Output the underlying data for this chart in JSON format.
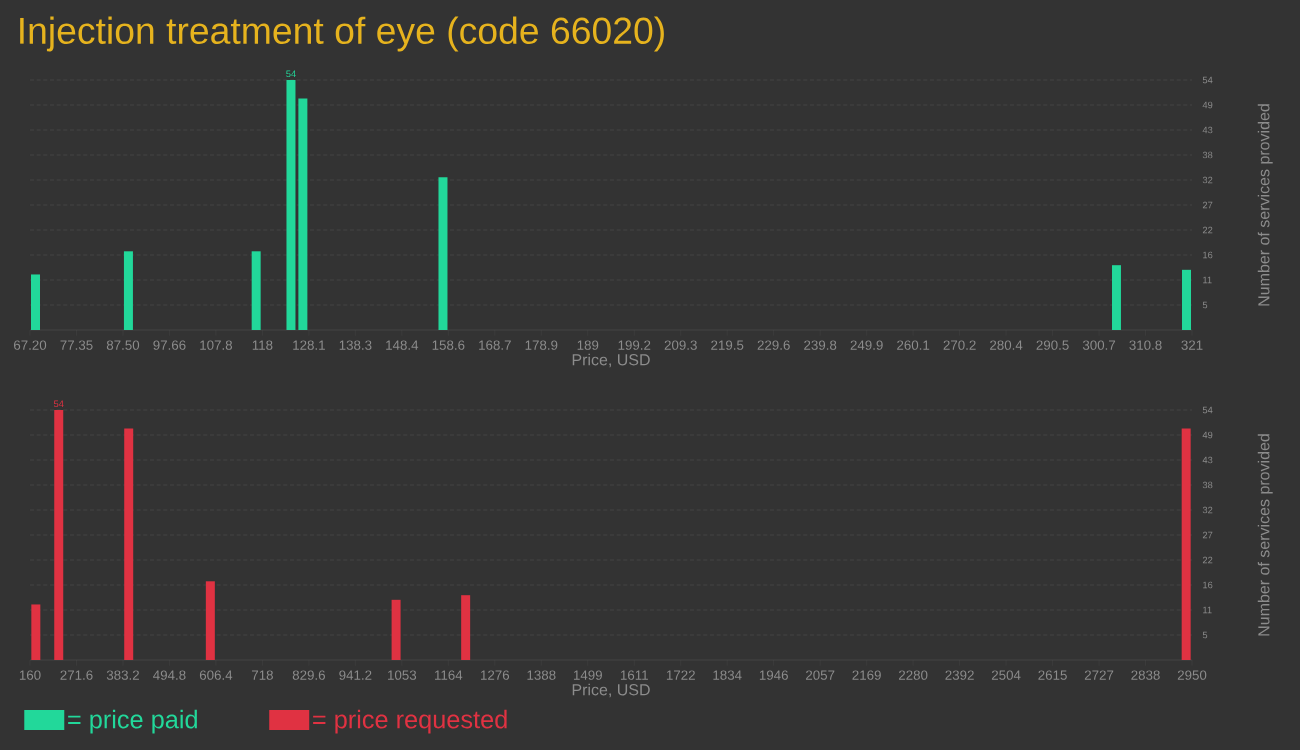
{
  "chart_data": [
    {
      "type": "bar",
      "title": "Injection treatment of eye (code 66020)",
      "xlabel": "Price, USD",
      "ylabel": "Number of services provided",
      "grid": "y",
      "legend": "bottom",
      "x": [
        68.4,
        88.7,
        116.6,
        124.2,
        126.8,
        157.4,
        304.5,
        319.8
      ],
      "series": [
        {
          "name": "= price paid",
          "color": "#22d89a",
          "values": [
            12,
            17,
            17,
            54,
            50,
            33,
            14,
            13
          ],
          "value_labels": [
            null,
            null,
            null,
            "54",
            null,
            null,
            null,
            null
          ]
        }
      ],
      "xlim": [
        67.2,
        321
      ],
      "xticks": [
        {
          "value": 67.2,
          "label": "67.20"
        },
        {
          "value": 77.352,
          "label": "77.35"
        },
        {
          "value": 87.504,
          "label": "87.50"
        },
        {
          "value": 97.656,
          "label": "97.66"
        },
        {
          "value": 107.808,
          "label": "107.8"
        },
        {
          "value": 117.96,
          "label": "118"
        },
        {
          "value": 128.112,
          "label": "128.1"
        },
        {
          "value": 138.264,
          "label": "138.3"
        },
        {
          "value": 148.416,
          "label": "148.4"
        },
        {
          "value": 158.568,
          "label": "158.6"
        },
        {
          "value": 168.72,
          "label": "168.7"
        },
        {
          "value": 178.872,
          "label": "178.9"
        },
        {
          "value": 189.024,
          "label": "189"
        },
        {
          "value": 199.176,
          "label": "199.2"
        },
        {
          "value": 209.328,
          "label": "209.3"
        },
        {
          "value": 219.48,
          "label": "219.5"
        },
        {
          "value": 229.632,
          "label": "229.6"
        },
        {
          "value": 239.784,
          "label": "239.8"
        },
        {
          "value": 249.936,
          "label": "249.9"
        },
        {
          "value": 260.088,
          "label": "260.1"
        },
        {
          "value": 270.24,
          "label": "270.2"
        },
        {
          "value": 280.392,
          "label": "280.4"
        },
        {
          "value": 290.544,
          "label": "290.5"
        },
        {
          "value": 300.696,
          "label": "300.7"
        },
        {
          "value": 310.848,
          "label": "310.8"
        },
        {
          "value": 321,
          "label": "321"
        }
      ],
      "ylim": [
        0,
        54
      ],
      "yticks": [
        {
          "value": 5.4,
          "label": "5"
        },
        {
          "value": 10.8,
          "label": "11"
        },
        {
          "value": 16.2,
          "label": "16"
        },
        {
          "value": 21.6,
          "label": "22"
        },
        27,
        {
          "value": 32.4,
          "label": "32"
        },
        {
          "value": 37.8,
          "label": "38"
        },
        {
          "value": 43.2,
          "label": "43"
        },
        {
          "value": 48.6,
          "label": "49"
        },
        54
      ]
    },
    {
      "type": "bar",
      "xlabel": "Price, USD",
      "ylabel": "Number of services provided",
      "grid": "y",
      "legend": "bottom",
      "x": [
        174,
        229,
        397,
        593,
        1039,
        1206,
        2936
      ],
      "series": [
        {
          "name": "= price requested",
          "color": "#e03242",
          "values": [
            12,
            54,
            50,
            17,
            13,
            14,
            50
          ],
          "value_labels": [
            null,
            "54",
            null,
            null,
            null,
            null,
            null
          ]
        }
      ],
      "xlim": [
        160,
        2950
      ],
      "xticks": [
        160,
        271.6,
        383.2,
        494.8,
        606.4,
        718,
        829.6,
        941.2,
        {
          "value": 1052.8,
          "label": "1053"
        },
        {
          "value": 1164.4,
          "label": "1164"
        },
        1276,
        {
          "value": 1387.6,
          "label": "1388"
        },
        {
          "value": 1499.2,
          "label": "1499"
        },
        {
          "value": 1610.8,
          "label": "1611"
        },
        {
          "value": 1722.4,
          "label": "1722"
        },
        1834,
        {
          "value": 1945.6,
          "label": "1946"
        },
        {
          "value": 2057.2,
          "label": "2057"
        },
        {
          "value": 2168.8,
          "label": "2169"
        },
        {
          "value": 2280.4,
          "label": "2280"
        },
        2392,
        {
          "value": 2503.6,
          "label": "2504"
        },
        {
          "value": 2615.2,
          "label": "2615"
        },
        {
          "value": 2726.8,
          "label": "2727"
        },
        {
          "value": 2838.4,
          "label": "2838"
        },
        2950
      ],
      "ylim": [
        0,
        54
      ],
      "yticks": [
        {
          "value": 5.4,
          "label": "5"
        },
        {
          "value": 10.8,
          "label": "11"
        },
        {
          "value": 16.2,
          "label": "16"
        },
        {
          "value": 21.6,
          "label": "22"
        },
        27,
        {
          "value": 32.4,
          "label": "32"
        },
        {
          "value": 37.8,
          "label": "38"
        },
        {
          "value": 43.2,
          "label": "43"
        },
        {
          "value": 48.6,
          "label": "49"
        },
        54
      ]
    }
  ]
}
